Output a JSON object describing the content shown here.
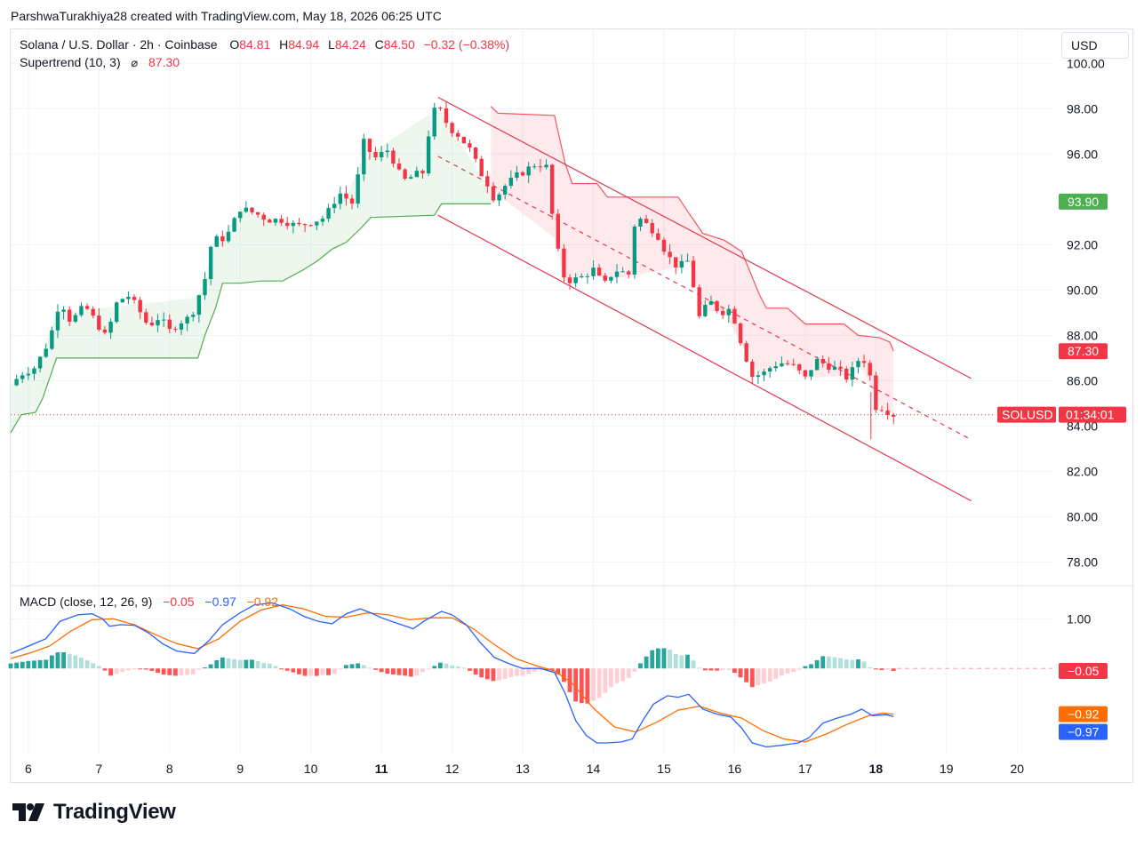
{
  "header": {
    "credit": "ParshwaTurakhiya28 created with TradingView.com, May 18, 2026 06:25 UTC"
  },
  "legend": {
    "symbol": "Solana / U.S. Dollar · 2h · Coinbase",
    "open_label": "O",
    "open": "84.81",
    "high_label": "H",
    "high": "84.94",
    "low_label": "L",
    "low": "84.24",
    "close_label": "C",
    "close": "84.50",
    "change": "−0.32 (−0.38%)",
    "supertrend_label": "Supertrend (10, 3)",
    "supertrend_icon": "eye-slash-icon",
    "supertrend_value": "87.30",
    "macd_label": "MACD (close, 12, 26, 9)",
    "macd_hist": "−0.05",
    "macd_line": "−0.97",
    "macd_signal": "−0.92"
  },
  "currency_button": "USD",
  "brand": "TradingView",
  "colors": {
    "up": "#089981",
    "down": "#f23645",
    "supertrend_up": "#4caf50",
    "supertrend_down": "#f7525f",
    "macd": "#2962ff",
    "signal": "#ff6d00",
    "channel": "#e03a4e"
  },
  "chart_data": [
    {
      "type": "candlestick",
      "title": "Solana / U.S. Dollar · 2h · Coinbase",
      "symbol": "SOLUSD",
      "countdown": "01:34:01",
      "current_price": 84.5,
      "ylim": [
        77,
        101.5
      ],
      "xlim": [
        5.75,
        20.5
      ],
      "y_ticks": [
        100,
        98,
        96,
        92,
        90,
        88,
        86,
        84,
        82,
        80,
        78
      ],
      "x_ticks": [
        {
          "label": "6",
          "value": 6,
          "bold": false
        },
        {
          "label": "7",
          "value": 7,
          "bold": false
        },
        {
          "label": "8",
          "value": 8,
          "bold": false
        },
        {
          "label": "9",
          "value": 9,
          "bold": false
        },
        {
          "label": "10",
          "value": 10,
          "bold": false
        },
        {
          "label": "11",
          "value": 11,
          "bold": true
        },
        {
          "label": "12",
          "value": 12,
          "bold": false
        },
        {
          "label": "13",
          "value": 13,
          "bold": false
        },
        {
          "label": "14",
          "value": 14,
          "bold": false
        },
        {
          "label": "15",
          "value": 15,
          "bold": false
        },
        {
          "label": "16",
          "value": 16,
          "bold": false
        },
        {
          "label": "17",
          "value": 17,
          "bold": false
        },
        {
          "label": "18",
          "value": 18,
          "bold": true
        },
        {
          "label": "19",
          "value": 19,
          "bold": false
        },
        {
          "label": "20",
          "value": 20,
          "bold": false
        }
      ],
      "price_tags": [
        {
          "label": "93.90",
          "value": 93.9,
          "color": "#4caf50"
        },
        {
          "label": "87.30",
          "value": 87.3,
          "color": "#f23645"
        }
      ],
      "close_path": [
        [
          5.75,
          85.8
        ],
        [
          5.9,
          86.3
        ],
        [
          6.1,
          86.6
        ],
        [
          6.3,
          87.8
        ],
        [
          6.45,
          89.6
        ],
        [
          6.6,
          88.6
        ],
        [
          6.8,
          89.3
        ],
        [
          7.0,
          88.4
        ],
        [
          7.1,
          87.9
        ],
        [
          7.25,
          89.4
        ],
        [
          7.4,
          89.8
        ],
        [
          7.55,
          89.2
        ],
        [
          7.7,
          88.4
        ],
        [
          7.85,
          88.8
        ],
        [
          8.0,
          88.2
        ],
        [
          8.15,
          88.6
        ],
        [
          8.3,
          88.8
        ],
        [
          8.5,
          90.5
        ],
        [
          8.6,
          92.2
        ],
        [
          8.8,
          92.3
        ],
        [
          9.0,
          93.6
        ],
        [
          9.2,
          93.4
        ],
        [
          9.4,
          93.1
        ],
        [
          9.6,
          93.1
        ],
        [
          9.8,
          92.8
        ],
        [
          10.0,
          93.0
        ],
        [
          10.2,
          93.2
        ],
        [
          10.4,
          94.3
        ],
        [
          10.6,
          93.8
        ],
        [
          10.75,
          96.5
        ],
        [
          10.9,
          95.8
        ],
        [
          11.1,
          96.2
        ],
        [
          11.3,
          94.8
        ],
        [
          11.5,
          95.1
        ],
        [
          11.6,
          95.2
        ],
        [
          11.7,
          97.7
        ],
        [
          11.8,
          98.1
        ],
        [
          11.95,
          97.2
        ],
        [
          12.1,
          96.8
        ],
        [
          12.25,
          96.2
        ],
        [
          12.4,
          95.2
        ],
        [
          12.5,
          94.7
        ],
        [
          12.6,
          94.0
        ],
        [
          12.75,
          94.6
        ],
        [
          12.9,
          95.0
        ],
        [
          13.05,
          95.3
        ],
        [
          13.2,
          95.6
        ],
        [
          13.35,
          95.4
        ],
        [
          13.45,
          92.3
        ],
        [
          13.6,
          90.4
        ],
        [
          13.8,
          90.5
        ],
        [
          14.0,
          90.9
        ],
        [
          14.15,
          90.2
        ],
        [
          14.3,
          90.9
        ],
        [
          14.5,
          90.7
        ],
        [
          14.6,
          93.3
        ],
        [
          14.75,
          92.9
        ],
        [
          14.9,
          92.5
        ],
        [
          15.05,
          91.5
        ],
        [
          15.2,
          91.0
        ],
        [
          15.35,
          91.3
        ],
        [
          15.5,
          88.8
        ],
        [
          15.65,
          89.5
        ],
        [
          15.8,
          89.0
        ],
        [
          15.95,
          89.2
        ],
        [
          16.1,
          87.6
        ],
        [
          16.25,
          86.2
        ],
        [
          16.4,
          86.3
        ],
        [
          16.55,
          86.7
        ],
        [
          16.7,
          86.8
        ],
        [
          16.85,
          86.6
        ],
        [
          17.0,
          86.1
        ],
        [
          17.15,
          86.9
        ],
        [
          17.3,
          86.7
        ],
        [
          17.45,
          86.5
        ],
        [
          17.6,
          86.1
        ],
        [
          17.75,
          86.9
        ],
        [
          17.9,
          86.9
        ],
        [
          17.95,
          84.8
        ],
        [
          18.05,
          84.9
        ],
        [
          18.15,
          84.7
        ],
        [
          18.25,
          84.5
        ]
      ],
      "supertrend": {
        "up": [
          [
            5.75,
            83.7
          ],
          [
            5.9,
            84.5
          ],
          [
            6.1,
            84.6
          ],
          [
            6.2,
            85.2
          ],
          [
            6.4,
            87.0
          ],
          [
            8.4,
            87.0
          ],
          [
            8.5,
            88.0
          ],
          [
            8.65,
            89.2
          ],
          [
            8.75,
            90.3
          ],
          [
            9.0,
            90.3
          ],
          [
            9.3,
            90.4
          ],
          [
            9.6,
            90.4
          ],
          [
            9.9,
            90.9
          ],
          [
            10.1,
            91.3
          ],
          [
            10.3,
            91.8
          ],
          [
            10.5,
            92.1
          ],
          [
            10.7,
            92.7
          ],
          [
            10.85,
            93.2
          ],
          [
            11.75,
            93.3
          ],
          [
            11.85,
            93.8
          ],
          [
            12.55,
            93.8
          ]
        ],
        "down": [
          [
            12.55,
            98.1
          ],
          [
            12.65,
            97.8
          ],
          [
            13.45,
            97.7
          ],
          [
            13.6,
            95.6
          ],
          [
            13.7,
            94.7
          ],
          [
            14.05,
            94.7
          ],
          [
            14.2,
            94.1
          ],
          [
            15.2,
            94.1
          ],
          [
            15.35,
            93.4
          ],
          [
            15.55,
            92.5
          ],
          [
            15.85,
            92.2
          ],
          [
            16.1,
            91.7
          ],
          [
            16.35,
            89.8
          ],
          [
            16.45,
            89.2
          ],
          [
            16.75,
            89.2
          ],
          [
            17.0,
            88.5
          ],
          [
            17.55,
            88.5
          ],
          [
            17.75,
            88.0
          ],
          [
            18.05,
            87.9
          ],
          [
            18.2,
            87.7
          ],
          [
            18.25,
            87.3
          ]
        ]
      },
      "channel": {
        "upper": [
          [
            11.8,
            98.5
          ],
          [
            19.35,
            86.1
          ]
        ],
        "lower": [
          [
            11.8,
            93.3
          ],
          [
            19.35,
            80.7
          ]
        ],
        "middle": [
          [
            11.8,
            95.9
          ],
          [
            19.35,
            83.4
          ]
        ]
      }
    },
    {
      "type": "macd",
      "title": "MACD (close, 12, 26, 9)",
      "ylim": [
        -1.75,
        1.65
      ],
      "y_ticks": [
        1.0
      ],
      "price_tags": [
        {
          "label": "−0.05",
          "value": -0.05,
          "color": "#f23645"
        },
        {
          "label": "−0.92",
          "value": -0.92,
          "color": "#ff6d00"
        },
        {
          "label": "−0.97",
          "value": -0.97,
          "color": "#2962ff"
        }
      ],
      "macd": [
        [
          5.75,
          0.3
        ],
        [
          6.0,
          0.45
        ],
        [
          6.25,
          0.6
        ],
        [
          6.45,
          0.95
        ],
        [
          6.7,
          1.08
        ],
        [
          6.9,
          1.1
        ],
        [
          7.05,
          1.0
        ],
        [
          7.15,
          0.85
        ],
        [
          7.3,
          0.88
        ],
        [
          7.5,
          0.87
        ],
        [
          7.7,
          0.72
        ],
        [
          7.9,
          0.5
        ],
        [
          8.1,
          0.35
        ],
        [
          8.35,
          0.3
        ],
        [
          8.55,
          0.55
        ],
        [
          8.75,
          0.88
        ],
        [
          9.0,
          1.12
        ],
        [
          9.2,
          1.28
        ],
        [
          9.45,
          1.32
        ],
        [
          9.7,
          1.2
        ],
        [
          9.9,
          1.05
        ],
        [
          10.1,
          0.95
        ],
        [
          10.3,
          0.9
        ],
        [
          10.5,
          1.1
        ],
        [
          10.7,
          1.2
        ],
        [
          10.85,
          1.12
        ],
        [
          11.0,
          1.02
        ],
        [
          11.2,
          0.92
        ],
        [
          11.45,
          0.8
        ],
        [
          11.6,
          0.95
        ],
        [
          11.85,
          1.15
        ],
        [
          12.0,
          1.08
        ],
        [
          12.2,
          0.88
        ],
        [
          12.4,
          0.52
        ],
        [
          12.6,
          0.22
        ],
        [
          12.8,
          0.1
        ],
        [
          13.0,
          0.0
        ],
        [
          13.25,
          0.0
        ],
        [
          13.45,
          -0.08
        ],
        [
          13.6,
          -0.5
        ],
        [
          13.75,
          -1.05
        ],
        [
          13.9,
          -1.35
        ],
        [
          14.05,
          -1.5
        ],
        [
          14.2,
          -1.5
        ],
        [
          14.4,
          -1.48
        ],
        [
          14.55,
          -1.42
        ],
        [
          14.7,
          -1.05
        ],
        [
          14.85,
          -0.72
        ],
        [
          15.05,
          -0.55
        ],
        [
          15.2,
          -0.58
        ],
        [
          15.35,
          -0.52
        ],
        [
          15.55,
          -0.82
        ],
        [
          15.75,
          -0.92
        ],
        [
          15.95,
          -0.98
        ],
        [
          16.1,
          -1.2
        ],
        [
          16.25,
          -1.5
        ],
        [
          16.45,
          -1.58
        ],
        [
          16.65,
          -1.55
        ],
        [
          16.9,
          -1.5
        ],
        [
          17.05,
          -1.4
        ],
        [
          17.25,
          -1.1
        ],
        [
          17.45,
          -1.0
        ],
        [
          17.65,
          -0.92
        ],
        [
          17.8,
          -0.82
        ],
        [
          17.95,
          -0.95
        ],
        [
          18.15,
          -0.93
        ],
        [
          18.25,
          -0.97
        ]
      ],
      "signal": [
        [
          5.75,
          0.2
        ],
        [
          6.0,
          0.3
        ],
        [
          6.3,
          0.45
        ],
        [
          6.6,
          0.75
        ],
        [
          6.9,
          0.98
        ],
        [
          7.2,
          1.0
        ],
        [
          7.5,
          0.88
        ],
        [
          7.8,
          0.68
        ],
        [
          8.1,
          0.5
        ],
        [
          8.4,
          0.4
        ],
        [
          8.7,
          0.6
        ],
        [
          9.0,
          0.95
        ],
        [
          9.3,
          1.18
        ],
        [
          9.6,
          1.28
        ],
        [
          9.9,
          1.2
        ],
        [
          10.2,
          1.05
        ],
        [
          10.5,
          1.03
        ],
        [
          10.8,
          1.12
        ],
        [
          11.1,
          1.08
        ],
        [
          11.4,
          0.98
        ],
        [
          11.7,
          1.02
        ],
        [
          12.0,
          1.02
        ],
        [
          12.3,
          0.8
        ],
        [
          12.6,
          0.48
        ],
        [
          12.9,
          0.2
        ],
        [
          13.2,
          0.05
        ],
        [
          13.45,
          -0.05
        ],
        [
          13.7,
          -0.3
        ],
        [
          14.0,
          -0.8
        ],
        [
          14.3,
          -1.18
        ],
        [
          14.6,
          -1.28
        ],
        [
          14.9,
          -1.08
        ],
        [
          15.2,
          -0.84
        ],
        [
          15.5,
          -0.76
        ],
        [
          15.8,
          -0.9
        ],
        [
          16.1,
          -1.0
        ],
        [
          16.4,
          -1.25
        ],
        [
          16.7,
          -1.42
        ],
        [
          17.0,
          -1.48
        ],
        [
          17.3,
          -1.32
        ],
        [
          17.6,
          -1.12
        ],
        [
          17.9,
          -0.95
        ],
        [
          18.1,
          -0.9
        ],
        [
          18.25,
          -0.92
        ]
      ],
      "histogram_note": "histogram = macd − signal"
    }
  ]
}
